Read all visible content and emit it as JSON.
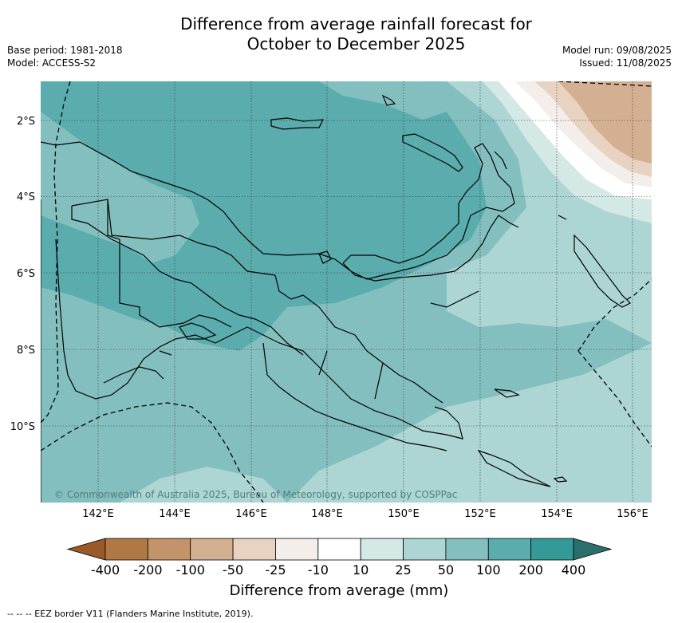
{
  "title": {
    "line1": "Difference from average rainfall forecast for",
    "line2": "October to December 2025"
  },
  "meta_left": {
    "base_period": "Base period: 1981-2018",
    "model": "Model: ACCESS-S2"
  },
  "meta_right": {
    "model_run": "Model run: 09/08/2025",
    "issued": "Issued: 11/08/2025"
  },
  "map": {
    "lat_labels": [
      "2°S",
      "4°S",
      "6°S",
      "8°S",
      "10°S"
    ],
    "lon_labels": [
      "142°E",
      "144°E",
      "146°E",
      "148°E",
      "150°E",
      "152°E",
      "154°E",
      "156°E"
    ],
    "copyright": "© Commonwealth of Australia 2025, Bureau of Meteorology, supported by COSPPac"
  },
  "colorbar": {
    "tick_labels": [
      "-400",
      "-200",
      "-100",
      "-50",
      "-25",
      "-10",
      "10",
      "25",
      "50",
      "100",
      "200",
      "400"
    ],
    "colors": [
      "#995a27",
      "#b07843",
      "#c39469",
      "#d4b092",
      "#e8d3c2",
      "#f3eeea",
      "#ffffff",
      "#d4e8e6",
      "#acd5d4",
      "#84bfbf",
      "#5aacad",
      "#339a97",
      "#2c6e6c"
    ],
    "title": "Difference from average (mm)"
  },
  "footer": "--  --  -- EEZ border V11 (Flanders Marine Institute, 2019)."
}
